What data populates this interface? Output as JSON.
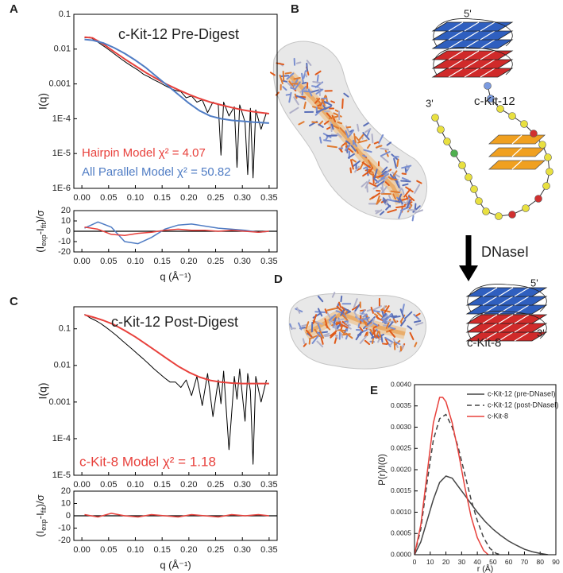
{
  "panel_labels": [
    "A",
    "B",
    "C",
    "D",
    "E"
  ],
  "schematics": {
    "c_kit_12": {
      "name": "c-Kit-12",
      "five_prime": "5'",
      "three_prime": "3'"
    },
    "c_kit_8": {
      "name": "c-Kit-8",
      "five_prime": "5'",
      "three_prime": "3'"
    },
    "arrow_label": "DNaseI"
  },
  "chart_data": [
    {
      "type": "line",
      "title": "c-Kit-12 Pre-Digest",
      "ylabel": "I(q)",
      "log_y": true,
      "xlim": [
        -0.015,
        0.365
      ],
      "xticks": [
        {
          "value": 0,
          "label": "0.00"
        },
        0.05,
        {
          "value": 0.1,
          "label": "0.10"
        },
        0.15,
        {
          "value": 0.2,
          "label": "0.20"
        },
        0.25,
        {
          "value": 0.3,
          "label": "0.30"
        },
        0.35
      ],
      "ylim": [
        1e-06,
        0.1
      ],
      "yticks": [
        {
          "value": 1e-06,
          "label": "1E-6"
        },
        {
          "value": 1e-05,
          "label": "1E-5"
        },
        {
          "value": 0.0001,
          "label": "1E-4"
        },
        0.001,
        0.01,
        0.1
      ],
      "annotations": [
        {
          "text": "Hairpin Model χ² = 4.07",
          "color": "#e8413c"
        },
        {
          "text": "All Parallel Model χ² = 50.82",
          "color": "#4f7cc4"
        }
      ],
      "series": [
        {
          "color": "#000000",
          "width": 1,
          "x": [
            0.005,
            0.015,
            0.025,
            0.035,
            0.045,
            0.055,
            0.065,
            0.075,
            0.085,
            0.095,
            0.105,
            0.115,
            0.125,
            0.135,
            0.145,
            0.155,
            0.165,
            0.175,
            0.185,
            0.195,
            0.205,
            0.215,
            0.225,
            0.235,
            0.245,
            0.255,
            0.26,
            0.265,
            0.275,
            0.285,
            0.29,
            0.295,
            0.305,
            0.31,
            0.315,
            0.32,
            0.325,
            0.335,
            0.345
          ],
          "values": [
            0.021,
            0.022,
            0.018,
            0.014,
            0.011,
            0.0085,
            0.0065,
            0.005,
            0.0039,
            0.0031,
            0.0025,
            0.0019,
            0.0016,
            0.0013,
            0.0011,
            0.0009,
            0.00075,
            0.00065,
            0.0006,
            0.0004,
            0.00045,
            0.0003,
            0.00035,
            0.00015,
            0.0003,
            0.00025,
            9e-06,
            0.0003,
            0.00012,
            0.00022,
            4e-06,
            0.00025,
            8e-05,
            2.5e-06,
            0.0002,
            2e-06,
            0.00018,
            5e-05,
            0.00015
          ]
        },
        {
          "color": "#e8413c",
          "width": 2,
          "x": [
            0.005,
            0.02,
            0.04,
            0.06,
            0.08,
            0.1,
            0.12,
            0.14,
            0.16,
            0.18,
            0.2,
            0.22,
            0.24,
            0.26,
            0.28,
            0.3,
            0.32,
            0.35
          ],
          "values": [
            0.022,
            0.021,
            0.014,
            0.0085,
            0.0052,
            0.0033,
            0.0021,
            0.0014,
            0.00095,
            0.00068,
            0.0005,
            0.00038,
            0.0003,
            0.00025,
            0.00021,
            0.00018,
            0.00016,
            0.00014
          ]
        },
        {
          "color": "#4f7cc4",
          "width": 2,
          "x": [
            0.005,
            0.02,
            0.04,
            0.06,
            0.08,
            0.1,
            0.12,
            0.14,
            0.16,
            0.18,
            0.2,
            0.22,
            0.24,
            0.26,
            0.28,
            0.3,
            0.32,
            0.35
          ],
          "values": [
            0.019,
            0.018,
            0.015,
            0.011,
            0.0075,
            0.0048,
            0.0029,
            0.0016,
            0.0009,
            0.0005,
            0.00028,
            0.00017,
            0.00012,
            0.0001,
            9e-05,
            8.5e-05,
            8e-05,
            7.5e-05
          ]
        }
      ]
    },
    {
      "type": "line",
      "ylabel_parts": [
        "(I",
        "exp",
        "-I",
        "fit",
        ")/σ"
      ],
      "xlabel": "q (Å⁻¹)",
      "xlim": [
        -0.015,
        0.365
      ],
      "xticks": [
        {
          "value": 0,
          "label": "0.00"
        },
        0.05,
        {
          "value": 0.1,
          "label": "0.10"
        },
        0.15,
        {
          "value": 0.2,
          "label": "0.20"
        },
        0.25,
        {
          "value": 0.3,
          "label": "0.30"
        },
        0.35
      ],
      "ylim": [
        -20,
        20
      ],
      "yticks": [
        -20,
        -10,
        0,
        10,
        20
      ],
      "hline": 0,
      "series": [
        {
          "color": "#4f7cc4",
          "width": 1.5,
          "x": [
            0.005,
            0.03,
            0.055,
            0.08,
            0.105,
            0.13,
            0.155,
            0.18,
            0.205,
            0.23,
            0.255,
            0.28,
            0.305,
            0.33,
            0.35
          ],
          "values": [
            3,
            9,
            4,
            -10,
            -12,
            -6,
            2,
            6,
            7,
            5,
            3,
            2,
            1,
            -1,
            0
          ]
        },
        {
          "color": "#e8413c",
          "width": 1.5,
          "x": [
            0.005,
            0.03,
            0.055,
            0.08,
            0.105,
            0.13,
            0.155,
            0.18,
            0.205,
            0.23,
            0.255,
            0.28,
            0.305,
            0.33,
            0.35
          ],
          "values": [
            4,
            2,
            -3,
            -4,
            -2,
            -1,
            1,
            2,
            1,
            1,
            0,
            1,
            0,
            -1,
            0
          ]
        }
      ]
    },
    {
      "type": "line",
      "title": "c-Kit-12 Post-Digest",
      "ylabel": "I(q)",
      "log_y": true,
      "xlim": [
        -0.015,
        0.365
      ],
      "xticks": [
        {
          "value": 0,
          "label": "0.00"
        },
        0.05,
        {
          "value": 0.1,
          "label": "0.10"
        },
        0.15,
        {
          "value": 0.2,
          "label": "0.20"
        },
        0.25,
        {
          "value": 0.3,
          "label": "0.30"
        },
        0.35
      ],
      "ylim": [
        1e-05,
        0.4
      ],
      "yticks": [
        {
          "value": 1e-05,
          "label": "1E-5"
        },
        {
          "value": 0.0001,
          "label": "1E-4"
        },
        0.001,
        0.01,
        0.1
      ],
      "annotations": [
        {
          "text": "c-Kit-8 Model χ² = 1.18",
          "color": "#e8413c"
        }
      ],
      "series": [
        {
          "color": "#000000",
          "width": 1,
          "x": [
            0.005,
            0.015,
            0.025,
            0.035,
            0.045,
            0.055,
            0.065,
            0.075,
            0.085,
            0.095,
            0.105,
            0.115,
            0.125,
            0.135,
            0.145,
            0.155,
            0.165,
            0.175,
            0.185,
            0.195,
            0.205,
            0.215,
            0.225,
            0.235,
            0.245,
            0.255,
            0.26,
            0.265,
            0.275,
            0.285,
            0.29,
            0.295,
            0.305,
            0.31,
            0.315,
            0.32,
            0.325,
            0.335,
            0.345
          ],
          "values": [
            0.25,
            0.2,
            0.17,
            0.14,
            0.11,
            0.085,
            0.065,
            0.048,
            0.036,
            0.027,
            0.02,
            0.015,
            0.011,
            0.008,
            0.006,
            0.0045,
            0.0035,
            0.0035,
            0.0025,
            0.004,
            0.0015,
            0.005,
            0.0008,
            0.006,
            0.0004,
            0.004,
            0.0009,
            0.007,
            5e-05,
            0.005,
            0.0012,
            0.008,
            0.0003,
            0.006,
            0.002,
            2e-05,
            0.005,
            0.001,
            0.004
          ]
        },
        {
          "color": "#e8413c",
          "width": 2,
          "x": [
            0.005,
            0.02,
            0.04,
            0.06,
            0.08,
            0.1,
            0.12,
            0.14,
            0.16,
            0.18,
            0.2,
            0.22,
            0.24,
            0.26,
            0.28,
            0.3,
            0.32,
            0.35
          ],
          "values": [
            0.24,
            0.21,
            0.17,
            0.13,
            0.09,
            0.06,
            0.038,
            0.024,
            0.015,
            0.0095,
            0.0065,
            0.0048,
            0.0039,
            0.0035,
            0.0033,
            0.0032,
            0.0032,
            0.0032
          ]
        }
      ]
    },
    {
      "type": "line",
      "ylabel_parts": [
        "(I",
        "exp",
        "-I",
        "fit",
        ")/σ"
      ],
      "xlabel": "q (Å⁻¹)",
      "xlim": [
        -0.015,
        0.365
      ],
      "xticks": [
        {
          "value": 0,
          "label": "0.00"
        },
        0.05,
        {
          "value": 0.1,
          "label": "0.10"
        },
        0.15,
        {
          "value": 0.2,
          "label": "0.20"
        },
        0.25,
        {
          "value": 0.3,
          "label": "0.30"
        },
        0.35
      ],
      "ylim": [
        -20,
        20
      ],
      "yticks": [
        -20,
        -10,
        0,
        10,
        20
      ],
      "hline": 0,
      "series": [
        {
          "color": "#e8413c",
          "width": 1.5,
          "x": [
            0.005,
            0.03,
            0.055,
            0.08,
            0.105,
            0.13,
            0.155,
            0.18,
            0.205,
            0.23,
            0.255,
            0.28,
            0.305,
            0.33,
            0.35
          ],
          "values": [
            1,
            -1,
            2,
            0,
            -1,
            1,
            0,
            -1,
            1,
            0,
            -1,
            1,
            0,
            1,
            0
          ]
        }
      ]
    },
    {
      "type": "line",
      "xlabel": "r (Å)",
      "ylabel": "P(r)/I(0)",
      "legend": "upper right",
      "xlim": [
        0,
        90
      ],
      "xticks": [
        0,
        10,
        20,
        30,
        40,
        50,
        60,
        70,
        80,
        90
      ],
      "ylim": [
        0,
        0.004
      ],
      "yticks": [
        {
          "value": 0,
          "label": "0.0000"
        },
        {
          "value": 0.0005,
          "label": "0.0005"
        },
        {
          "value": 0.001,
          "label": "0.0010"
        },
        {
          "value": 0.0015,
          "label": "0.0015"
        },
        {
          "value": 0.002,
          "label": "0.0020"
        },
        {
          "value": 0.0025,
          "label": "0.0025"
        },
        {
          "value": 0.003,
          "label": "0.0030"
        },
        {
          "value": 0.0035,
          "label": "0.0035"
        },
        {
          "value": 0.004,
          "label": "0.0040"
        }
      ],
      "series": [
        {
          "name": "c-Kit-12 (pre-DNaseI)",
          "color": "#444444",
          "width": 1.5,
          "x": [
            0,
            4,
            8,
            12,
            16,
            20,
            24,
            28,
            32,
            36,
            40,
            45,
            50,
            55,
            60,
            65,
            70,
            75,
            80,
            85
          ],
          "values": [
            0,
            0.0003,
            0.0008,
            0.0013,
            0.0017,
            0.00185,
            0.0018,
            0.0016,
            0.0014,
            0.0012,
            0.001,
            0.00078,
            0.0006,
            0.00045,
            0.00032,
            0.00022,
            0.00013,
            7e-05,
            3e-05,
            0
          ]
        },
        {
          "name": "c-Kit-12 (post-DNaseI)",
          "color": "#444444",
          "width": 1.5,
          "dash": true,
          "x": [
            0,
            4,
            8,
            12,
            16,
            20,
            24,
            28,
            32,
            36,
            40,
            44,
            48,
            52,
            55
          ],
          "values": [
            0,
            0.0006,
            0.0017,
            0.0027,
            0.0032,
            0.0033,
            0.003,
            0.0025,
            0.0019,
            0.0013,
            0.0008,
            0.0004,
            0.00015,
            3e-05,
            0
          ]
        },
        {
          "name": "c-Kit-8",
          "color": "#e8413c",
          "width": 1.5,
          "x": [
            0,
            4,
            8,
            12,
            16,
            18,
            20,
            24,
            28,
            32,
            36,
            40,
            44,
            47
          ],
          "values": [
            0,
            0.0007,
            0.0019,
            0.0031,
            0.0037,
            0.0037,
            0.0036,
            0.0031,
            0.0024,
            0.0016,
            0.0009,
            0.0004,
            0.0001,
            0
          ]
        }
      ]
    }
  ]
}
